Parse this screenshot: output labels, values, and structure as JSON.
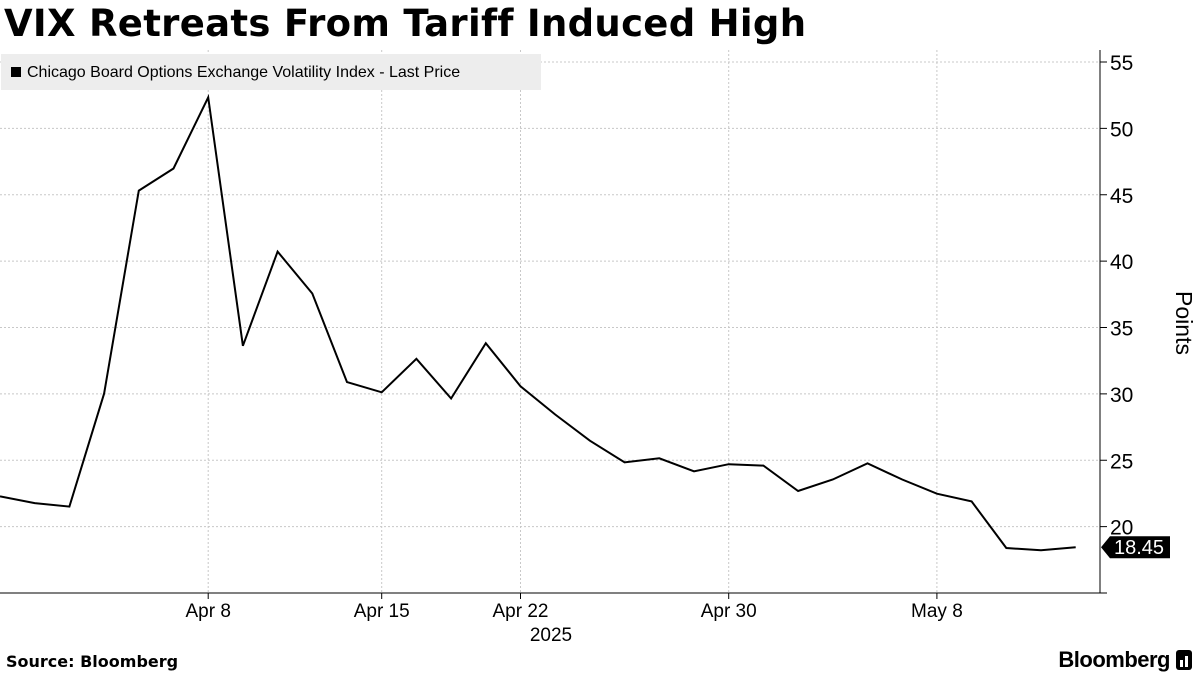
{
  "chart_data": {
    "type": "line",
    "title": "VIX Retreats From Tariff Induced High",
    "legend": "Chicago Board Options Exchange Volatility Index - Last Price",
    "legend_position": "top-left",
    "ylabel": "Points",
    "ylim": [
      15,
      56
    ],
    "yticks": [
      20,
      25,
      30,
      35,
      40,
      45,
      50,
      55
    ],
    "xticks": [
      {
        "label": "Apr 8",
        "index": 6
      },
      {
        "label": "Apr 15",
        "index": 11
      },
      {
        "label": "Apr 22",
        "index": 15
      },
      {
        "label": "Apr 30",
        "index": 21
      },
      {
        "label": "May 8",
        "index": 27
      }
    ],
    "year_label": "2025",
    "grid": true,
    "last_value_label": "18.45",
    "series": [
      {
        "name": "Chicago Board Options Exchange Volatility Index - Last Price",
        "values": [
          22.28,
          21.77,
          21.51,
          30.02,
          45.31,
          46.98,
          52.33,
          33.62,
          40.72,
          37.56,
          30.89,
          30.12,
          32.64,
          29.65,
          33.82,
          30.57,
          28.45,
          26.47,
          24.84,
          25.15,
          24.17,
          24.7,
          24.6,
          22.68,
          23.55,
          24.76,
          23.55,
          22.48,
          21.9,
          18.39,
          18.22,
          18.45
        ]
      }
    ]
  },
  "footer": {
    "source": "Source: Bloomberg",
    "brand": "Bloomberg"
  }
}
